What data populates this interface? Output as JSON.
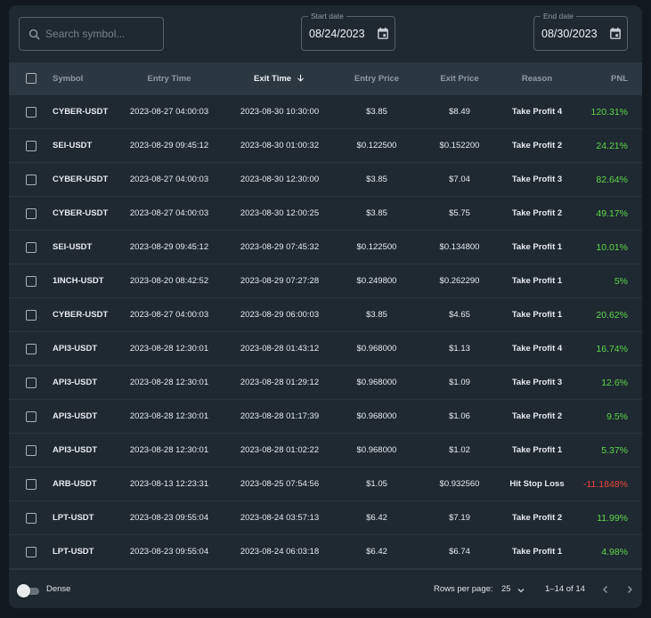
{
  "search": {
    "placeholder": "Search symbol..."
  },
  "start_date": {
    "label": "Start date",
    "value": "08/24/2023"
  },
  "end_date": {
    "label": "End date",
    "value": "08/30/2023"
  },
  "columns": [
    "Symbol",
    "Entry Time",
    "Exit Time",
    "Entry Price",
    "Exit Price",
    "Reason",
    "PNL"
  ],
  "sort": {
    "column": "Exit Time",
    "direction": "desc"
  },
  "rows": [
    {
      "symbol": "CYBER-USDT",
      "entry_time": "2023-08-27 04:00:03",
      "exit_time": "2023-08-30 10:30:00",
      "entry_price": "$3.85",
      "exit_price": "$8.49",
      "reason": "Take Profit 4",
      "pnl": "120.31%",
      "pnl_color": "#5fd64a"
    },
    {
      "symbol": "SEI-USDT",
      "entry_time": "2023-08-29 09:45:12",
      "exit_time": "2023-08-30 01:00:32",
      "entry_price": "$0.122500",
      "exit_price": "$0.152200",
      "reason": "Take Profit 2",
      "pnl": "24.21%",
      "pnl_color": "#5fd64a"
    },
    {
      "symbol": "CYBER-USDT",
      "entry_time": "2023-08-27 04:00:03",
      "exit_time": "2023-08-30 12:30:00",
      "entry_price": "$3.85",
      "exit_price": "$7.04",
      "reason": "Take Profit 3",
      "pnl": "82.64%",
      "pnl_color": "#5fd64a"
    },
    {
      "symbol": "CYBER-USDT",
      "entry_time": "2023-08-27 04:00:03",
      "exit_time": "2023-08-30 12:00:25",
      "entry_price": "$3.85",
      "exit_price": "$5.75",
      "reason": "Take Profit 2",
      "pnl": "49.17%",
      "pnl_color": "#5fd64a"
    },
    {
      "symbol": "SEI-USDT",
      "entry_time": "2023-08-29 09:45:12",
      "exit_time": "2023-08-29 07:45:32",
      "entry_price": "$0.122500",
      "exit_price": "$0.134800",
      "reason": "Take Profit 1",
      "pnl": "10.01%",
      "pnl_color": "#5fd64a"
    },
    {
      "symbol": "1INCH-USDT",
      "entry_time": "2023-08-20 08:42:52",
      "exit_time": "2023-08-29 07:27:28",
      "entry_price": "$0.249800",
      "exit_price": "$0.262290",
      "reason": "Take Profit 1",
      "pnl": "5%",
      "pnl_color": "#5fd64a"
    },
    {
      "symbol": "CYBER-USDT",
      "entry_time": "2023-08-27 04:00:03",
      "exit_time": "2023-08-29 06:00:03",
      "entry_price": "$3.85",
      "exit_price": "$4.65",
      "reason": "Take Profit 1",
      "pnl": "20.62%",
      "pnl_color": "#5fd64a"
    },
    {
      "symbol": "API3-USDT",
      "entry_time": "2023-08-28 12:30:01",
      "exit_time": "2023-08-28 01:43:12",
      "entry_price": "$0.968000",
      "exit_price": "$1.13",
      "reason": "Take Profit 4",
      "pnl": "16.74%",
      "pnl_color": "#5fd64a"
    },
    {
      "symbol": "API3-USDT",
      "entry_time": "2023-08-28 12:30:01",
      "exit_time": "2023-08-28 01:29:12",
      "entry_price": "$0.968000",
      "exit_price": "$1.09",
      "reason": "Take Profit 3",
      "pnl": "12.6%",
      "pnl_color": "#5fd64a"
    },
    {
      "symbol": "API3-USDT",
      "entry_time": "2023-08-28 12:30:01",
      "exit_time": "2023-08-28 01:17:39",
      "entry_price": "$0.968000",
      "exit_price": "$1.06",
      "reason": "Take Profit 2",
      "pnl": "9.5%",
      "pnl_color": "#5fd64a"
    },
    {
      "symbol": "API3-USDT",
      "entry_time": "2023-08-28 12:30:01",
      "exit_time": "2023-08-28 01:02:22",
      "entry_price": "$0.968000",
      "exit_price": "$1.02",
      "reason": "Take Profit 1",
      "pnl": "5.37%",
      "pnl_color": "#5fd64a"
    },
    {
      "symbol": "ARB-USDT",
      "entry_time": "2023-08-13 12:23:31",
      "exit_time": "2023-08-25 07:54:56",
      "entry_price": "$1.05",
      "exit_price": "$0.932560",
      "reason": "Hit Stop Loss",
      "pnl": "-11.1848%",
      "pnl_color": "#f0443a"
    },
    {
      "symbol": "LPT-USDT",
      "entry_time": "2023-08-23 09:55:04",
      "exit_time": "2023-08-24 03:57:13",
      "entry_price": "$6.42",
      "exit_price": "$7.19",
      "reason": "Take Profit 2",
      "pnl": "11.99%",
      "pnl_color": "#5fd64a"
    },
    {
      "symbol": "LPT-USDT",
      "entry_time": "2023-08-23 09:55:04",
      "exit_time": "2023-08-24 06:03:18",
      "entry_price": "$6.42",
      "exit_price": "$6.74",
      "reason": "Take Profit 1",
      "pnl": "4.98%",
      "pnl_color": "#5fd64a"
    }
  ],
  "footer": {
    "dense_label": "Dense",
    "rows_per_page_label": "Rows per page:",
    "rows_per_page_value": "25",
    "range_text": "1–14 of 14"
  },
  "icons": {
    "search": "search-icon",
    "calendar": "calendar-icon",
    "sort": "arrow-down-icon",
    "dropdown": "chevron-down-icon",
    "prev": "chevron-left-icon",
    "next": "chevron-right-icon"
  }
}
